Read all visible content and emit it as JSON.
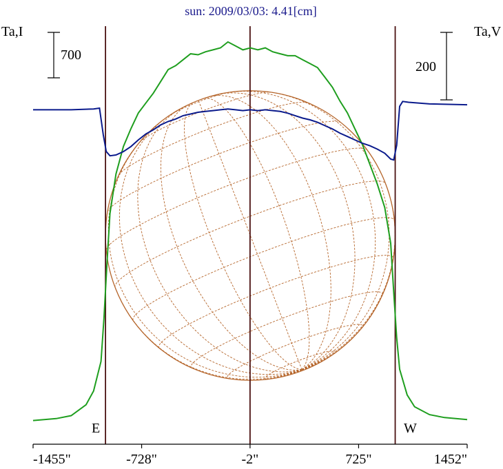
{
  "chart_data": {
    "type": "line",
    "title": "sun: 2009/03/03: 4.41[cm]",
    "left_axis_label": "Ta,I",
    "right_axis_label": "Ta,V",
    "scale_bar_left": "700",
    "scale_bar_right": "200",
    "east_label": "E",
    "west_label": "W",
    "xlim": [
      -1455,
      1452
    ],
    "x_tick_values": [
      -1455,
      -728,
      -2,
      725,
      1452
    ],
    "x_tick_labels": [
      "-1455\"",
      "-728\"",
      "-2\"",
      "725\"",
      "1452\""
    ],
    "vertical_markers_arcsec": [
      -970,
      -2,
      970
    ],
    "solar_disk_radius_arcsec": 970,
    "colors": {
      "intensity": "#1e9e1e",
      "polarization": "#0a1a8c",
      "disk": "#b5652a",
      "markers": "#4a1010",
      "title": "#1a1a8c"
    },
    "series": [
      {
        "name": "Ta,I",
        "unit_note": "left scale, 700 per bar",
        "ylim": [
          -120,
          2000
        ],
        "x": [
          -1455,
          -1300,
          -1200,
          -1100,
          -1050,
          -1000,
          -980,
          -960,
          -940,
          -900,
          -850,
          -800,
          -750,
          -700,
          -650,
          -600,
          -550,
          -500,
          -450,
          -400,
          -350,
          -300,
          -250,
          -200,
          -150,
          -100,
          -50,
          0,
          50,
          100,
          150,
          200,
          250,
          300,
          350,
          400,
          450,
          500,
          550,
          600,
          650,
          700,
          750,
          800,
          850,
          900,
          940,
          960,
          980,
          1000,
          1050,
          1100,
          1200,
          1300,
          1452
        ],
        "y": [
          0,
          10,
          25,
          80,
          150,
          300,
          520,
          800,
          1050,
          1250,
          1390,
          1480,
          1560,
          1610,
          1660,
          1720,
          1780,
          1800,
          1830,
          1860,
          1855,
          1870,
          1880,
          1890,
          1920,
          1900,
          1880,
          1890,
          1880,
          1890,
          1870,
          1860,
          1850,
          1850,
          1830,
          1810,
          1790,
          1740,
          1690,
          1620,
          1560,
          1480,
          1400,
          1300,
          1200,
          1080,
          900,
          650,
          420,
          260,
          130,
          70,
          30,
          15,
          5
        ]
      },
      {
        "name": "Ta,V",
        "unit_note": "right scale, 200 per bar",
        "ylim": [
          -800,
          200
        ],
        "x": [
          -1455,
          -1200,
          -1050,
          -1010,
          -985,
          -965,
          -940,
          -900,
          -850,
          -800,
          -750,
          -700,
          -650,
          -600,
          -550,
          -500,
          -450,
          -400,
          -350,
          -300,
          -250,
          -200,
          -150,
          -100,
          -50,
          0,
          50,
          100,
          150,
          200,
          250,
          300,
          350,
          400,
          450,
          500,
          550,
          600,
          650,
          700,
          750,
          800,
          850,
          900,
          940,
          960,
          980,
          1000,
          1020,
          1060,
          1200,
          1452
        ],
        "y": [
          0,
          0,
          2,
          4,
          -60,
          -100,
          -110,
          -108,
          -100,
          -88,
          -72,
          -58,
          -48,
          -36,
          -28,
          -22,
          -14,
          -10,
          -6,
          -4,
          -2,
          0,
          2,
          0,
          -2,
          0,
          -2,
          0,
          -2,
          -4,
          -8,
          -14,
          -20,
          -24,
          -30,
          -38,
          -46,
          -56,
          -64,
          -72,
          -80,
          -86,
          -94,
          -104,
          -118,
          -120,
          -85,
          8,
          20,
          18,
          14,
          12
        ]
      }
    ]
  }
}
